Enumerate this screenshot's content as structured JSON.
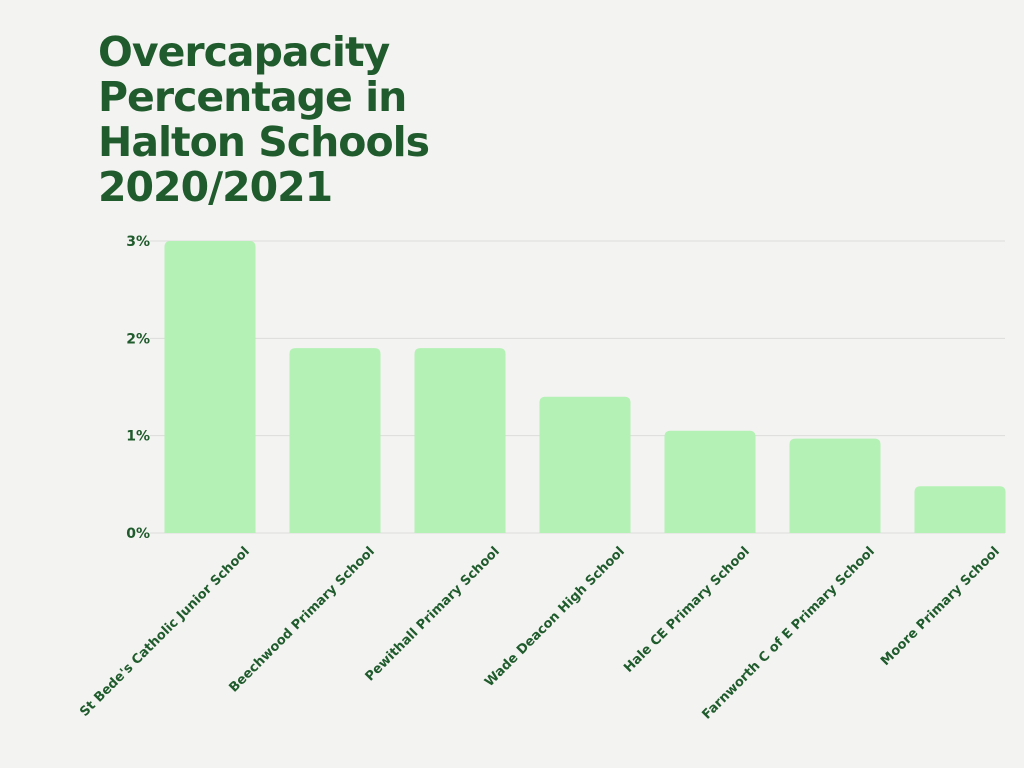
{
  "colors": {
    "background": "#f3f3f1",
    "title": "#1f5b2c",
    "bar": "#b3f1b4",
    "text": "#1f5b2c",
    "grid": "#dcdcda"
  },
  "chart_data": {
    "type": "bar",
    "title_lines": [
      "Overcapacity",
      "Percentage in",
      "Halton Schools",
      "2020/2021"
    ],
    "title": "Overcapacity Percentage in Halton Schools 2020/2021",
    "xlabel": "",
    "ylabel": "",
    "categories": [
      "St Bede's Catholic Junior School",
      "Beechwood Primary School",
      "Pewithall Primary School",
      "Wade Deacon High School",
      "Hale CE Primary School",
      "Farnworth C of E Primary School",
      "Moore Primary School"
    ],
    "values": [
      3.0,
      1.9,
      1.9,
      1.4,
      1.05,
      0.97,
      0.48
    ],
    "ylim": [
      0,
      3
    ],
    "yticks": [
      0,
      1,
      2,
      3
    ],
    "ytick_labels": [
      "0%",
      "1%",
      "2%",
      "3%"
    ],
    "grid": true,
    "legend": "none"
  }
}
